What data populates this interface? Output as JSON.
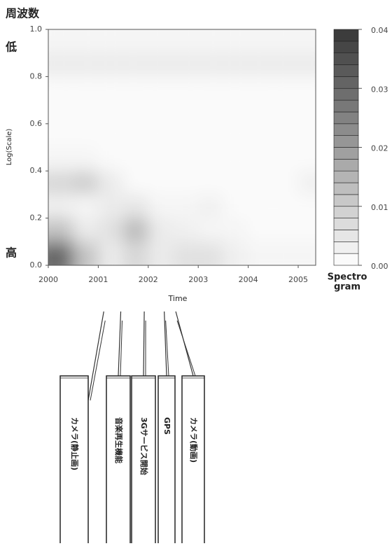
{
  "chart_data": {
    "type": "heatmap",
    "title": "周波数",
    "low_label": "低",
    "high_label": "高",
    "xlabel": "Time",
    "ylabel": "Log(Scale)",
    "xlim": [
      2000,
      2005.35
    ],
    "ylim": [
      0,
      1
    ],
    "xticks": [
      2000,
      2001,
      2002,
      2003,
      2004,
      2005
    ],
    "yticks": [
      {
        "value": 0,
        "label": "0.0"
      },
      0.2,
      0.4,
      0.6,
      0.8,
      {
        "value": 1,
        "label": "1.0"
      }
    ],
    "x_bins": [
      2000,
      2000.5,
      2001,
      2001.5,
      2002,
      2002.5,
      2003,
      2003.5,
      2004,
      2004.5,
      2005,
      2005.35
    ],
    "y_bins": [
      0,
      0.1,
      0.2,
      0.3,
      0.4,
      0.5,
      0.6,
      0.7,
      0.8,
      0.9,
      1
    ],
    "z": [
      [
        0.03,
        0.012,
        0.004,
        0.008,
        0.004,
        0.006,
        0.006,
        0.003,
        0.002,
        0.002,
        0.002
      ],
      [
        0.012,
        0.004,
        0.006,
        0.014,
        0.004,
        0.003,
        0.002,
        0.002,
        0.001,
        0.001,
        0.001
      ],
      [
        0.003,
        0.002,
        0.004,
        0.005,
        0.002,
        0.002,
        0.003,
        0.001,
        0.001,
        0.001,
        0.001
      ],
      [
        0.008,
        0.01,
        0.004,
        0.001,
        0.001,
        0.001,
        0.001,
        0.001,
        0.001,
        0.001,
        0.003
      ],
      [
        0.002,
        0.002,
        0.001,
        0.001,
        0.001,
        0.001,
        0.001,
        0.001,
        0.001,
        0.001,
        0.001
      ],
      [
        0.001,
        0.001,
        0.001,
        0.001,
        0.001,
        0.001,
        0.001,
        0.001,
        0.001,
        0.001,
        0.001
      ],
      [
        0.001,
        0.001,
        0.001,
        0.001,
        0.001,
        0.001,
        0.001,
        0.001,
        0.001,
        0.001,
        0.001
      ],
      [
        0.001,
        0.001,
        0.001,
        0.001,
        0.001,
        0.001,
        0.001,
        0.001,
        0.001,
        0.001,
        0.001
      ],
      [
        0.004,
        0.004,
        0.004,
        0.004,
        0.004,
        0.004,
        0.004,
        0.004,
        0.004,
        0.004,
        0.004
      ],
      [
        0.002,
        0.002,
        0.002,
        0.002,
        0.002,
        0.002,
        0.002,
        0.002,
        0.002,
        0.002,
        0.002
      ]
    ],
    "colorbar_lim": [
      0,
      0.04
    ],
    "colorbar_ticks": [
      {
        "value": 0,
        "label": "0.00"
      },
      0.01,
      0.02,
      0.03,
      0.04
    ],
    "colorbar_title": [
      "Spectro",
      "gram"
    ],
    "events": [
      {
        "x": 2001.11,
        "label": "カメラ(静止画)"
      },
      {
        "x": 2001.45,
        "label": "音楽再生機能"
      },
      {
        "x": 2001.92,
        "label": "3Gサービス開始"
      },
      {
        "x": 2002.32,
        "label": "GPS"
      },
      {
        "x": 2002.55,
        "label": "カメラ(動画)"
      }
    ]
  }
}
